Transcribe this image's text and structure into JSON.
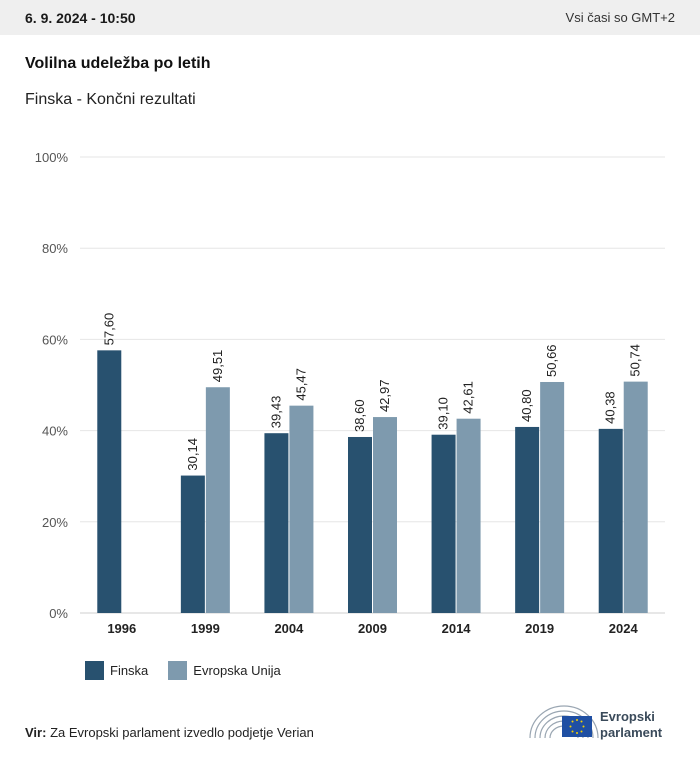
{
  "header": {
    "date": "6. 9. 2024 - 10:50",
    "timezone": "Vsi časi so GMT+2"
  },
  "title": "Volilna udeležba po letih",
  "subtitle": "Finska - Končni rezultati",
  "legend": [
    {
      "label": "Finska",
      "color": "#28516f"
    },
    {
      "label": "Evropska Unija",
      "color": "#7e9aae"
    }
  ],
  "source": {
    "label": "Vir:",
    "text": "Za Evropski parlament izvedlo podjetje Verian"
  },
  "logo": {
    "line1": "Evropski",
    "line2": "parlament",
    "icon": "european-parliament-hemicycle-icon"
  },
  "chart_data": {
    "type": "bar",
    "categories": [
      "1996",
      "1999",
      "2004",
      "2009",
      "2014",
      "2019",
      "2024"
    ],
    "series": [
      {
        "name": "Finska",
        "color": "#28516f",
        "values": [
          57.6,
          30.14,
          39.43,
          38.6,
          39.1,
          40.8,
          40.38
        ],
        "labels": [
          "57,60",
          "30,14",
          "39,43",
          "38,60",
          "39,10",
          "40,80",
          "40,38"
        ]
      },
      {
        "name": "Evropska Unija",
        "color": "#7e9aae",
        "values": [
          null,
          49.51,
          45.47,
          42.97,
          42.61,
          50.66,
          50.74
        ],
        "labels": [
          "",
          "49,51",
          "45,47",
          "42,97",
          "42,61",
          "50,66",
          "50,74"
        ]
      }
    ],
    "ylim": [
      0,
      100
    ],
    "yticks": [
      0,
      20,
      40,
      60,
      80,
      100
    ],
    "ytick_labels": [
      "0%",
      "20%",
      "40%",
      "60%",
      "80%",
      "100%"
    ],
    "grid": true
  }
}
